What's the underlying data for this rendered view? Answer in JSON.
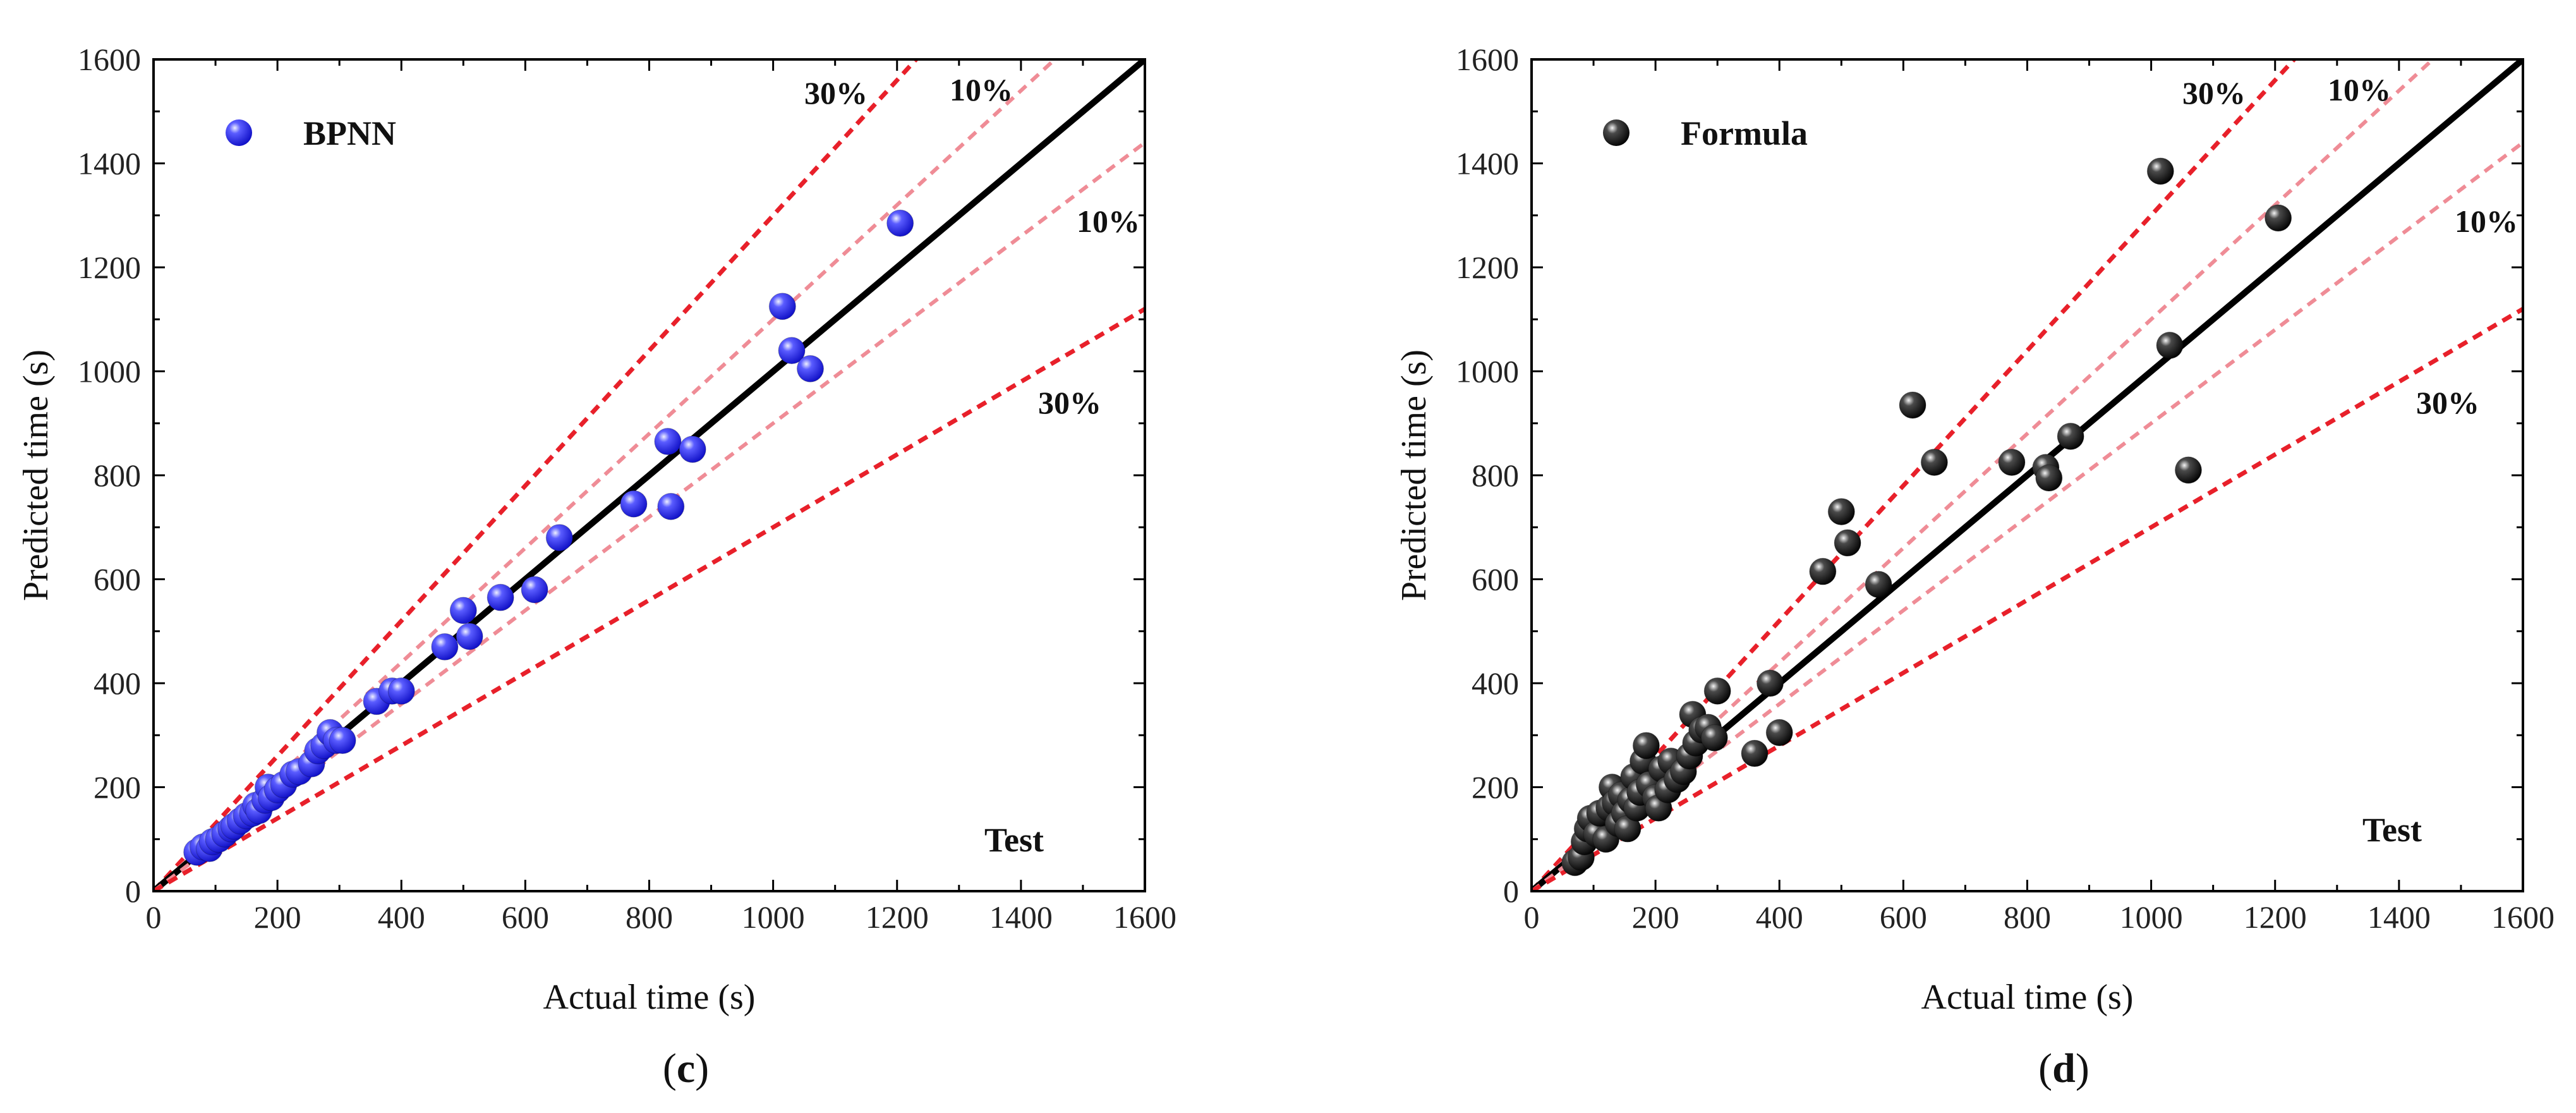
{
  "colors": {
    "bpnn_marker": "#1f1ff0",
    "formula_marker": "#111111",
    "band_30": "#e8202a",
    "band_10": "#ef8c96",
    "identity": "#000000",
    "axis": "#000000"
  },
  "chart_data": [
    {
      "type": "scatter",
      "panel_label": "(c)",
      "panel_prefix": "(",
      "panel_letter": "c",
      "panel_suffix": ")",
      "xlabel": "Actual time (s)",
      "ylabel": "Predicted time (s)",
      "xlim": [
        0,
        1600
      ],
      "ylim": [
        0,
        1600
      ],
      "xticks": [
        0,
        200,
        400,
        600,
        800,
        1000,
        1200,
        1400,
        1600
      ],
      "yticks": [
        0,
        200,
        400,
        600,
        800,
        1000,
        1200,
        1400,
        1600
      ],
      "legend": "BPNN",
      "legend_position": "top-left",
      "annotation": "Test",
      "band_labels": {
        "upper_30": "30%",
        "upper_10": "10%",
        "lower_10": "10%",
        "lower_30": "30%"
      },
      "series": [
        {
          "name": "BPNN",
          "points": [
            [
              70,
              75
            ],
            [
              80,
              85
            ],
            [
              90,
              82
            ],
            [
              95,
              95
            ],
            [
              105,
              100
            ],
            [
              115,
              110
            ],
            [
              125,
              120
            ],
            [
              130,
              125
            ],
            [
              140,
              135
            ],
            [
              150,
              145
            ],
            [
              160,
              150
            ],
            [
              165,
              165
            ],
            [
              170,
              155
            ],
            [
              180,
              175
            ],
            [
              185,
              200
            ],
            [
              190,
              180
            ],
            [
              200,
              195
            ],
            [
              210,
              205
            ],
            [
              225,
              225
            ],
            [
              235,
              230
            ],
            [
              255,
              245
            ],
            [
              265,
              270
            ],
            [
              275,
              280
            ],
            [
              285,
              305
            ],
            [
              295,
              290
            ],
            [
              305,
              290
            ],
            [
              360,
              365
            ],
            [
              385,
              385
            ],
            [
              400,
              385
            ],
            [
              470,
              470
            ],
            [
              500,
              540
            ],
            [
              510,
              490
            ],
            [
              560,
              565
            ],
            [
              615,
              580
            ],
            [
              655,
              680
            ],
            [
              775,
              745
            ],
            [
              830,
              865
            ],
            [
              835,
              740
            ],
            [
              870,
              850
            ],
            [
              1015,
              1125
            ],
            [
              1030,
              1040
            ],
            [
              1060,
              1005
            ],
            [
              1205,
              1285
            ]
          ]
        }
      ]
    },
    {
      "type": "scatter",
      "panel_label": "(d)",
      "panel_prefix": "(",
      "panel_letter": "d",
      "panel_suffix": ")",
      "xlabel": "Actual time (s)",
      "ylabel": "Predicted time (s)",
      "xlim": [
        0,
        1600
      ],
      "ylim": [
        0,
        1600
      ],
      "xticks": [
        0,
        200,
        400,
        600,
        800,
        1000,
        1200,
        1400,
        1600
      ],
      "yticks": [
        0,
        200,
        400,
        600,
        800,
        1000,
        1200,
        1400,
        1600
      ],
      "legend": "Formula",
      "legend_position": "top-left",
      "annotation": "Test",
      "band_labels": {
        "upper_30": "30%",
        "upper_10": "10%",
        "lower_10": "10%",
        "lower_30": "30%"
      },
      "series": [
        {
          "name": "Formula",
          "points": [
            [
              70,
              55
            ],
            [
              80,
              65
            ],
            [
              85,
              95
            ],
            [
              90,
              120
            ],
            [
              95,
              140
            ],
            [
              105,
              110
            ],
            [
              110,
              150
            ],
            [
              120,
              100
            ],
            [
              125,
              160
            ],
            [
              130,
              200
            ],
            [
              135,
              170
            ],
            [
              140,
              130
            ],
            [
              145,
              185
            ],
            [
              150,
              150
            ],
            [
              155,
              120
            ],
            [
              160,
              175
            ],
            [
              165,
              220
            ],
            [
              170,
              160
            ],
            [
              175,
              190
            ],
            [
              180,
              250
            ],
            [
              185,
              280
            ],
            [
              190,
              205
            ],
            [
              200,
              180
            ],
            [
              205,
              160
            ],
            [
              210,
              235
            ],
            [
              220,
              195
            ],
            [
              225,
              250
            ],
            [
              235,
              215
            ],
            [
              245,
              230
            ],
            [
              255,
              260
            ],
            [
              260,
              340
            ],
            [
              265,
              285
            ],
            [
              275,
              310
            ],
            [
              285,
              315
            ],
            [
              295,
              295
            ],
            [
              300,
              385
            ],
            [
              360,
              265
            ],
            [
              385,
              400
            ],
            [
              400,
              305
            ],
            [
              470,
              615
            ],
            [
              500,
              730
            ],
            [
              510,
              670
            ],
            [
              560,
              590
            ],
            [
              615,
              935
            ],
            [
              650,
              825
            ],
            [
              775,
              825
            ],
            [
              830,
              815
            ],
            [
              835,
              795
            ],
            [
              870,
              875
            ],
            [
              1015,
              1385
            ],
            [
              1030,
              1050
            ],
            [
              1060,
              810
            ],
            [
              1205,
              1295
            ]
          ]
        }
      ]
    }
  ]
}
